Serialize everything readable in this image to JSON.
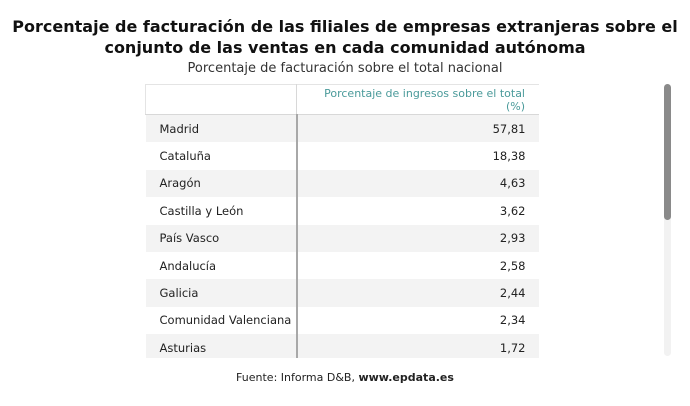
{
  "title": "Porcentaje de facturación de las filiales de empresas extranjeras sobre el conjunto de las ventas en cada comunidad autónoma",
  "subtitle": "Porcentaje de facturación sobre el total nacional",
  "source": {
    "prefix": "Fuente: Informa D&B, ",
    "url": "www.epdata.es"
  },
  "chart_data": {
    "type": "table",
    "columns": [
      "",
      "Porcentaje de ingresos sobre el total (%)"
    ],
    "rows": [
      {
        "name": "Madrid",
        "value": "57,81"
      },
      {
        "name": "Cataluña",
        "value": "18,38"
      },
      {
        "name": "Aragón",
        "value": "4,63"
      },
      {
        "name": "Castilla y León",
        "value": "3,62"
      },
      {
        "name": "País Vasco",
        "value": "2,93"
      },
      {
        "name": "Andalucía",
        "value": "2,58"
      },
      {
        "name": "Galicia",
        "value": "2,44"
      },
      {
        "name": "Comunidad Valenciana",
        "value": "2,34"
      },
      {
        "name": "Asturias",
        "value": "1,72"
      }
    ]
  },
  "scrollbar": {
    "position": 0.0,
    "visible_fraction": 0.5
  },
  "colors": {
    "header_text": "#4a9a9a",
    "row_stripe": "#f3f3f3",
    "scroll_thumb": "#8a8a8a"
  }
}
